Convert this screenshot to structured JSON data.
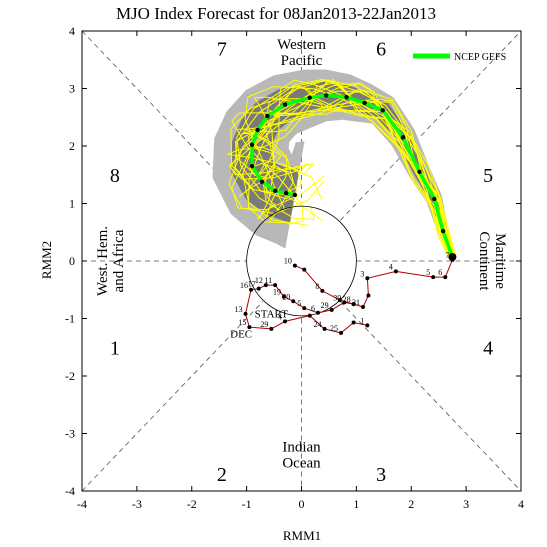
{
  "chart_data": {
    "type": "line",
    "title": "MJO Index Forecast for 08Jan2013-22Jan2013",
    "xlabel": "RMM1",
    "ylabel": "RMM2",
    "xlim": [
      -4,
      4
    ],
    "ylim": [
      -4,
      4
    ],
    "xticks": [
      -4,
      -3,
      -2,
      -1,
      0,
      1,
      2,
      3,
      4
    ],
    "yticks": [
      -4,
      -3,
      -2,
      -1,
      0,
      1,
      2,
      3,
      4
    ],
    "xtick_labels": [
      "-4",
      "-3",
      "-2",
      "-1",
      "0",
      "1",
      "2",
      "3",
      "4"
    ],
    "ytick_labels": [
      "-4",
      "-3",
      "-2",
      "-1",
      "0",
      "1",
      "2",
      "3",
      "4"
    ],
    "phases": [
      {
        "label": "1",
        "x": -3.4,
        "y": -1.5
      },
      {
        "label": "2",
        "x": -1.45,
        "y": -3.7
      },
      {
        "label": "3",
        "x": 1.45,
        "y": -3.7
      },
      {
        "label": "4",
        "x": 3.4,
        "y": -1.5
      },
      {
        "label": "5",
        "x": 3.4,
        "y": 1.5
      },
      {
        "label": "6",
        "x": 1.45,
        "y": 3.7
      },
      {
        "label": "7",
        "x": -1.45,
        "y": 3.7
      },
      {
        "label": "8",
        "x": -3.4,
        "y": 1.5
      }
    ],
    "regions": [
      {
        "lines": [
          "Western",
          "Pacific"
        ],
        "x": 0.0,
        "y": 3.55,
        "rotate": 0
      },
      {
        "lines": [
          "Indian",
          "Ocean"
        ],
        "x": 0.0,
        "y": -3.45,
        "rotate": 0
      },
      {
        "lines": [
          "West. Hem.",
          "and Africa"
        ],
        "x": -3.4,
        "y": 0.0,
        "rotate": -90
      },
      {
        "lines": [
          "Maritime",
          "Continent"
        ],
        "x": 3.4,
        "y": 0.0,
        "rotate": 90
      }
    ],
    "legend": {
      "position": "top-right",
      "entries": [
        {
          "label": "NCEP GEFS",
          "color": "#00ff00"
        }
      ]
    },
    "annotations": [
      {
        "text": "START",
        "x": -0.55,
        "y": -0.98,
        "color": "#3d1fa0"
      },
      {
        "text": "DEC",
        "x": -1.1,
        "y": -1.33,
        "color": "#cc0000"
      }
    ],
    "unit_circle_radius": 1,
    "series": [
      {
        "role": "observed",
        "color": "#b00000",
        "points": [
          {
            "x": -0.12,
            "y": -0.08,
            "label": "10"
          },
          {
            "x": 0.05,
            "y": -0.15,
            "label": ""
          },
          {
            "x": 0.38,
            "y": -0.52,
            "label": "8"
          },
          {
            "x": 0.7,
            "y": -0.68,
            "label": ""
          },
          {
            "x": 0.95,
            "y": -0.75,
            "label": "28"
          },
          {
            "x": 1.12,
            "y": -0.8,
            "label": "31"
          },
          {
            "x": 1.22,
            "y": -0.6,
            "label": ""
          },
          {
            "x": 1.2,
            "y": -0.3,
            "label": "3"
          },
          {
            "x": 1.72,
            "y": -0.18,
            "label": "4"
          },
          {
            "x": 2.4,
            "y": -0.28,
            "label": "5"
          },
          {
            "x": 2.62,
            "y": -0.28,
            "label": "6"
          },
          {
            "x": 2.75,
            "y": 0.02,
            "label": "7"
          }
        ]
      },
      {
        "role": "observed-december",
        "color": "#b00000",
        "points": [
          {
            "x": 1.2,
            "y": -1.12,
            "label": "1"
          },
          {
            "x": 0.95,
            "y": -1.07,
            "label": ""
          },
          {
            "x": 0.72,
            "y": -1.25,
            "label": "25"
          },
          {
            "x": 0.42,
            "y": -1.18,
            "label": "24"
          },
          {
            "x": 0.15,
            "y": -0.95,
            "label": ""
          },
          {
            "x": -0.3,
            "y": -1.05,
            "label": "4"
          },
          {
            "x": -0.55,
            "y": -1.18,
            "label": "29"
          },
          {
            "x": -0.95,
            "y": -1.15,
            "label": "15"
          },
          {
            "x": -1.02,
            "y": -0.92,
            "label": "13"
          },
          {
            "x": -0.92,
            "y": -0.5,
            "label": "16"
          },
          {
            "x": -0.78,
            "y": -0.48,
            "label": "17"
          },
          {
            "x": -0.65,
            "y": -0.42,
            "label": "12"
          },
          {
            "x": -0.48,
            "y": -0.42,
            "label": "11"
          },
          {
            "x": -0.32,
            "y": -0.62,
            "label": "19"
          },
          {
            "x": -0.15,
            "y": -0.7,
            "label": "20"
          },
          {
            "x": 0.05,
            "y": -0.82,
            "label": "5"
          },
          {
            "x": 0.3,
            "y": -0.9,
            "label": "6"
          },
          {
            "x": 0.55,
            "y": -0.85,
            "label": "29"
          },
          {
            "x": 0.78,
            "y": -0.72,
            "label": "30"
          },
          {
            "x": 0.95,
            "y": -0.75,
            "label": ""
          }
        ]
      },
      {
        "role": "forecast-mean",
        "name": "NCEP GEFS",
        "color": "#00ff00",
        "points": [
          {
            "x": 2.75,
            "y": 0.07
          },
          {
            "x": 2.58,
            "y": 0.52
          },
          {
            "x": 2.42,
            "y": 1.08
          },
          {
            "x": 2.15,
            "y": 1.55
          },
          {
            "x": 1.85,
            "y": 2.15
          },
          {
            "x": 1.48,
            "y": 2.62
          },
          {
            "x": 1.15,
            "y": 2.75
          },
          {
            "x": 0.82,
            "y": 2.85
          },
          {
            "x": 0.45,
            "y": 2.88
          },
          {
            "x": 0.15,
            "y": 2.84
          },
          {
            "x": -0.3,
            "y": 2.72
          },
          {
            "x": -0.62,
            "y": 2.52
          },
          {
            "x": -0.8,
            "y": 2.28
          },
          {
            "x": -0.9,
            "y": 2.02
          },
          {
            "x": -0.9,
            "y": 1.65
          },
          {
            "x": -0.72,
            "y": 1.38
          },
          {
            "x": -0.48,
            "y": 1.22
          },
          {
            "x": -0.28,
            "y": 1.18
          },
          {
            "x": -0.12,
            "y": 1.15
          }
        ]
      }
    ],
    "ensemble_member_color": "#ffff00"
  }
}
